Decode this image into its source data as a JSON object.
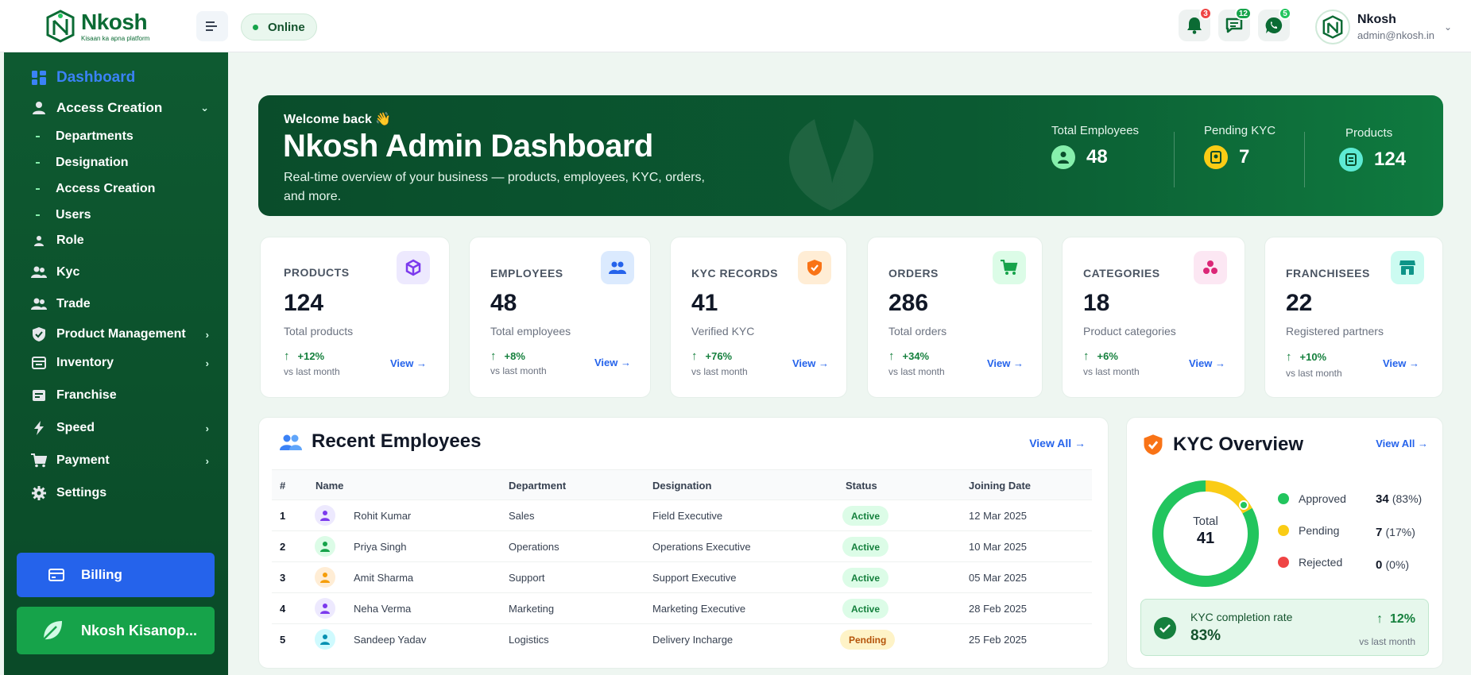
{
  "brand": {
    "name": "Nkosh",
    "tagline": "Kisaan ka apna platform"
  },
  "topbar": {
    "status": "Online",
    "notifications": [
      {
        "icon": "bell-icon",
        "count": "3",
        "color": "#ef4444"
      },
      {
        "icon": "chat-icon",
        "count": "12",
        "color": "#16a34a"
      },
      {
        "icon": "whatsapp-icon",
        "count": "5",
        "color": "#22c55e"
      }
    ],
    "user": {
      "name": "Nkosh",
      "email": "admin@nkosh.in"
    }
  },
  "sidebar": {
    "items": [
      {
        "label": "Dashboard",
        "icon": "dashboard-icon",
        "active": true
      },
      {
        "label": "Access Creation",
        "icon": "user-icon",
        "expanded": true
      },
      {
        "label": "Departments",
        "sub": true
      },
      {
        "label": "Designation",
        "sub": true
      },
      {
        "label": "Access Creation",
        "sub": true
      },
      {
        "label": "Users",
        "sub": true
      },
      {
        "label": "Role",
        "icon": "person-icon"
      },
      {
        "label": "Kyc",
        "icon": "users-icon"
      },
      {
        "label": "Trade",
        "icon": "users-icon"
      },
      {
        "label": "Product Management",
        "icon": "shield-icon",
        "chevron": true
      },
      {
        "label": "Inventory",
        "icon": "box-icon",
        "chevron": true
      },
      {
        "label": "Franchise",
        "icon": "store-icon"
      },
      {
        "label": "Speed",
        "icon": "bolt-icon",
        "chevron": true
      },
      {
        "label": "Payment",
        "icon": "cart-icon",
        "chevron": true
      },
      {
        "label": "Settings",
        "icon": "gear-icon"
      }
    ],
    "billing": "Billing",
    "kisan": "Nkosh Kisanop..."
  },
  "hero": {
    "welcome": "Welcome back 👋",
    "title": "Nkosh Admin Dashboard",
    "subtitle": "Real-time overview of your business — products, employees, KYC, orders, and more.",
    "stats": [
      {
        "label": "Total Employees",
        "value": "48"
      },
      {
        "label": "Pending KYC",
        "value": "7"
      },
      {
        "label": "Products",
        "value": "124"
      }
    ]
  },
  "cards": [
    {
      "title": "PRODUCTS",
      "value": "124",
      "sub": "Total products",
      "growth": "+12%",
      "compare": "vs last month",
      "view": "View",
      "icon": "cube-icon",
      "icon_bg": "#ede9fe",
      "icon_color": "#7c3aed"
    },
    {
      "title": "EMPLOYEES",
      "value": "48",
      "sub": "Total employees",
      "growth": "+8%",
      "compare": "vs last month",
      "view": "View",
      "icon": "people-icon",
      "icon_bg": "#dbeafe",
      "icon_color": "#2563eb"
    },
    {
      "title": "KYC RECORDS",
      "value": "41",
      "sub": "Verified KYC",
      "growth": "+76%",
      "compare": "vs last month",
      "view": "View",
      "icon": "shield-check-icon",
      "icon_bg": "#ffedd5",
      "icon_color": "#f97316"
    },
    {
      "title": "ORDERS",
      "value": "286",
      "sub": "Total orders",
      "growth": "+34%",
      "compare": "vs last month",
      "view": "View",
      "icon": "cart-icon",
      "icon_bg": "#dcfce7",
      "icon_color": "#16a34a"
    },
    {
      "title": "CATEGORIES",
      "value": "18",
      "sub": "Product categories",
      "growth": "+6%",
      "compare": "vs last month",
      "view": "View",
      "icon": "categories-icon",
      "icon_bg": "#fce7f3",
      "icon_color": "#db2777"
    },
    {
      "title": "FRANCHISEES",
      "value": "22",
      "sub": "Registered partners",
      "growth": "+10%",
      "compare": "vs last month",
      "view": "View",
      "icon": "store-icon",
      "icon_bg": "#ccfbf1",
      "icon_color": "#0d9488"
    }
  ],
  "employees": {
    "title": "Recent Employees",
    "view_all": "View All",
    "headers": [
      "#",
      "Name",
      "Department",
      "Designation",
      "Status",
      "Joining Date"
    ],
    "rows": [
      {
        "n": "1",
        "name": "Rohit Kumar",
        "dept": "Sales",
        "desig": "Field Executive",
        "status": "Active",
        "date": "12 Mar 2025",
        "av": "#ede9fe",
        "avc": "#7c3aed"
      },
      {
        "n": "2",
        "name": "Priya Singh",
        "dept": "Operations",
        "desig": "Operations Executive",
        "status": "Active",
        "date": "10 Mar 2025",
        "av": "#dcfce7",
        "avc": "#16a34a"
      },
      {
        "n": "3",
        "name": "Amit Sharma",
        "dept": "Support",
        "desig": "Support Executive",
        "status": "Active",
        "date": "05 Mar 2025",
        "av": "#ffedd5",
        "avc": "#f59e0b"
      },
      {
        "n": "4",
        "name": "Neha Verma",
        "dept": "Marketing",
        "desig": "Marketing Executive",
        "status": "Active",
        "date": "28 Feb 2025",
        "av": "#ede9fe",
        "avc": "#7c3aed"
      },
      {
        "n": "5",
        "name": "Sandeep Yadav",
        "dept": "Logistics",
        "desig": "Delivery Incharge",
        "status": "Pending",
        "date": "25 Feb 2025",
        "av": "#cffafe",
        "avc": "#0891b2"
      }
    ]
  },
  "kyc": {
    "title": "KYC Overview",
    "view_all": "View All",
    "total_label": "Total",
    "total": "41",
    "legend": [
      {
        "label": "Approved",
        "value": "34",
        "pct": "(83%)",
        "color": "#22c55e",
        "share": 0.83
      },
      {
        "label": "Pending",
        "value": "7",
        "pct": "(17%)",
        "color": "#facc15",
        "share": 0.17
      },
      {
        "label": "Rejected",
        "value": "0",
        "pct": "(0%)",
        "color": "#ef4444",
        "share": 0
      }
    ],
    "rate_label": "KYC completion rate",
    "rate_value": "83%",
    "rate_growth": "12%",
    "rate_compare": "vs last month"
  }
}
